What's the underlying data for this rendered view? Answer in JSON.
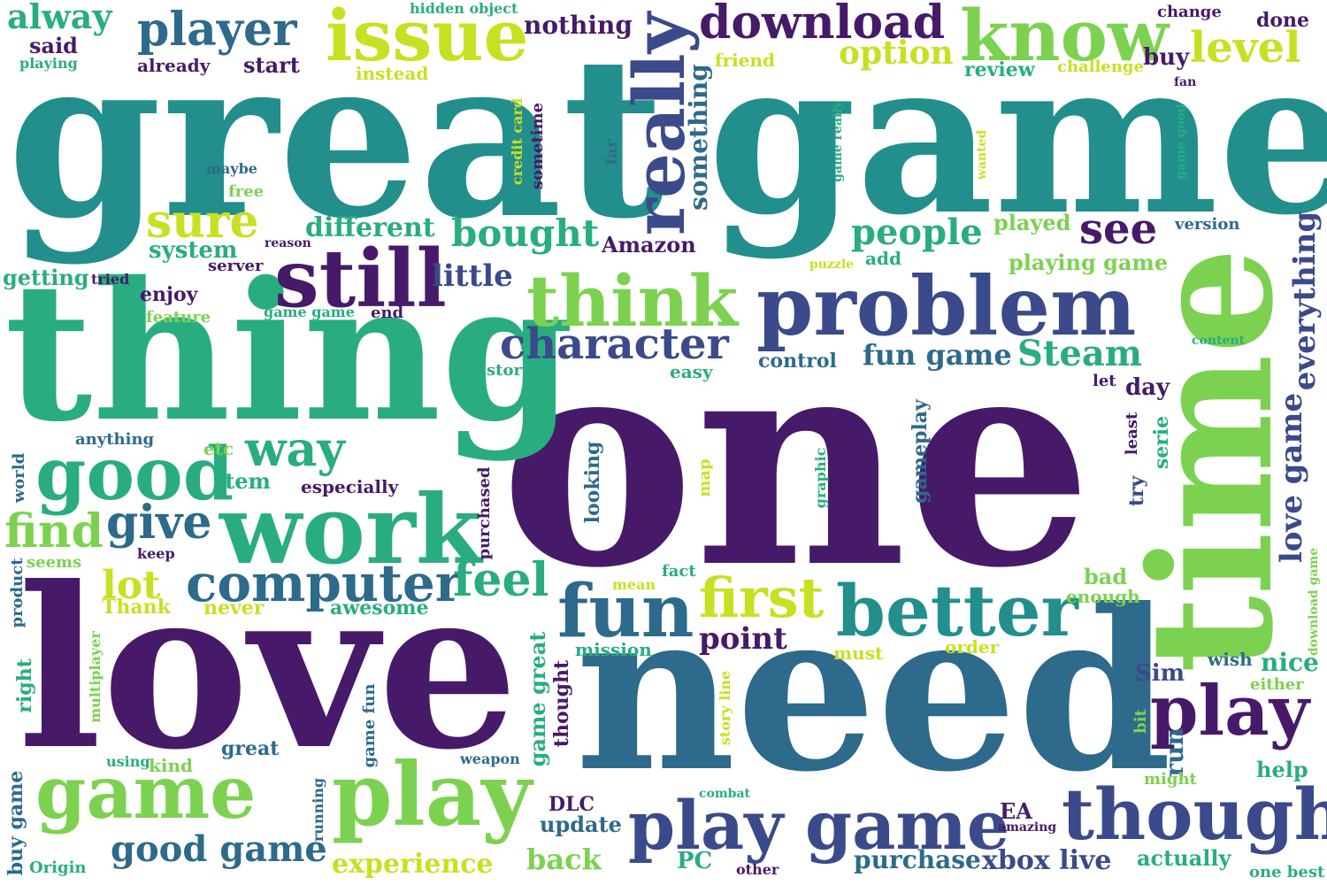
{
  "palette": {
    "purple": "#471a69",
    "indigo": "#3b4a8a",
    "blue": "#2d6a8b",
    "teal": "#24908b",
    "green": "#29ad80",
    "lime": "#7cd250",
    "yellow": "#c8e022"
  },
  "words": [
    "great",
    "game",
    "one",
    "love",
    "need",
    "thing",
    "time",
    "problem",
    "work",
    "still",
    "issue",
    "know",
    "player",
    "download",
    "really",
    "think",
    "good",
    "play",
    "fun",
    "better",
    "computer",
    "first",
    "though",
    "game",
    "play",
    "character",
    "feel",
    "sure",
    "find",
    "give",
    "way",
    "alway",
    "see",
    "level",
    "option",
    "people",
    "bought",
    "different",
    "Steam",
    "fun game",
    "little",
    "lot",
    "point",
    "play",
    "game",
    "good game",
    "experience",
    "purchase",
    "xbox live",
    "actually",
    "everything",
    "love game",
    "something",
    "nothing",
    "said",
    "playing",
    "already",
    "start",
    "hidden object",
    "instead",
    "friend",
    "review",
    "challenge",
    "buy",
    "change",
    "done",
    "fan",
    "game really",
    "game good",
    "wanted",
    "credit card",
    "sometime",
    "far",
    "maybe",
    "free",
    "system",
    "server",
    "reason",
    "Amazon",
    "played",
    "version",
    "getting",
    "tried",
    "enjoy",
    "feature",
    "game game",
    "end",
    "add",
    "puzzle",
    "playing game",
    "control",
    "story",
    "easy",
    "content",
    "let",
    "day",
    "least",
    "serie",
    "try",
    "anything",
    "etc",
    "item",
    "especially",
    "world",
    "looking",
    "map",
    "graphic",
    "gameplay",
    "purchased",
    "keep",
    "seems",
    "product",
    "Thank",
    "never",
    "awesome",
    "mission",
    "mean",
    "fact",
    "must",
    "order",
    "bad",
    "enough",
    "download game",
    "nice",
    "wish",
    "either",
    "Sim",
    "right",
    "multiplayer",
    "game great",
    "thought",
    "story line",
    "bit",
    "run",
    "great",
    "game fun",
    "kind",
    "using",
    "weapon",
    "might",
    "help",
    "buy game",
    "running",
    "DLC",
    "update",
    "combat",
    "EA",
    "amazing",
    "back",
    "PC",
    "other",
    "Origin",
    "one best"
  ]
}
